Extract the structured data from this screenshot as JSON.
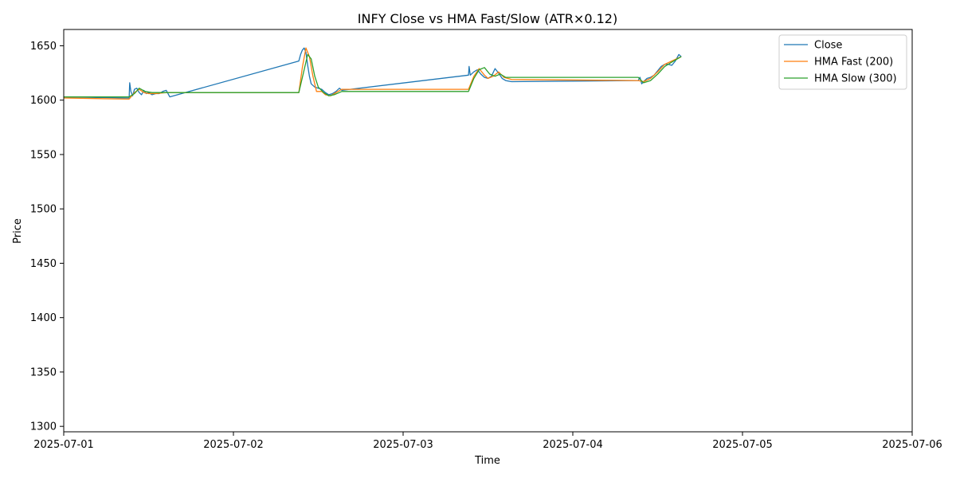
{
  "chart_data": {
    "type": "line",
    "title": "INFY  Close vs HMA Fast/Slow (ATR×0.12)",
    "xlabel": "Time",
    "ylabel": "Price",
    "xlim": [
      "2025-07-01T00:00",
      "2025-07-06T00:00"
    ],
    "ylim": [
      1295,
      1665
    ],
    "x_ticks": [
      "2025-07-01",
      "2025-07-02",
      "2025-07-03",
      "2025-07-04",
      "2025-07-05",
      "2025-07-06"
    ],
    "y_ticks": [
      1300,
      1350,
      1400,
      1450,
      1500,
      1550,
      1600,
      1650
    ],
    "grid": false,
    "legend_position": "top-right",
    "series": [
      {
        "name": "Close",
        "color": "#1f77b4",
        "points": [
          [
            "2025-07-01T00:00",
            1603
          ],
          [
            "2025-07-01T09:15",
            1602
          ],
          [
            "2025-07-01T09:20",
            1616
          ],
          [
            "2025-07-01T09:30",
            1608
          ],
          [
            "2025-07-01T09:45",
            1604
          ],
          [
            "2025-07-01T10:00",
            1610
          ],
          [
            "2025-07-01T10:20",
            1611
          ],
          [
            "2025-07-01T10:40",
            1607
          ],
          [
            "2025-07-01T11:00",
            1605
          ],
          [
            "2025-07-01T11:20",
            1609
          ],
          [
            "2025-07-01T11:40",
            1606
          ],
          [
            "2025-07-01T12:00",
            1607
          ],
          [
            "2025-07-01T12:30",
            1605
          ],
          [
            "2025-07-01T13:00",
            1606
          ],
          [
            "2025-07-01T13:30",
            1606
          ],
          [
            "2025-07-01T14:00",
            1608
          ],
          [
            "2025-07-01T14:30",
            1609
          ],
          [
            "2025-07-01T15:00",
            1603
          ],
          [
            "2025-07-02T09:15",
            1636
          ],
          [
            "2025-07-02T09:30",
            1642
          ],
          [
            "2025-07-02T09:45",
            1646
          ],
          [
            "2025-07-02T10:00",
            1648
          ],
          [
            "2025-07-02T10:15",
            1644
          ],
          [
            "2025-07-02T10:30",
            1632
          ],
          [
            "2025-07-02T10:45",
            1622
          ],
          [
            "2025-07-02T11:00",
            1615
          ],
          [
            "2025-07-02T11:30",
            1612
          ],
          [
            "2025-07-02T12:00",
            1611
          ],
          [
            "2025-07-02T12:30",
            1610
          ],
          [
            "2025-07-02T13:00",
            1607
          ],
          [
            "2025-07-02T13:30",
            1605
          ],
          [
            "2025-07-02T14:00",
            1606
          ],
          [
            "2025-07-02T14:30",
            1608
          ],
          [
            "2025-07-02T15:00",
            1611
          ],
          [
            "2025-07-02T15:20",
            1609
          ],
          [
            "2025-07-03T09:15",
            1623
          ],
          [
            "2025-07-03T09:20",
            1631
          ],
          [
            "2025-07-03T09:30",
            1623
          ],
          [
            "2025-07-03T10:00",
            1626
          ],
          [
            "2025-07-03T10:30",
            1628
          ],
          [
            "2025-07-03T11:00",
            1624
          ],
          [
            "2025-07-03T11:30",
            1621
          ],
          [
            "2025-07-03T12:00",
            1620
          ],
          [
            "2025-07-03T12:30",
            1622
          ],
          [
            "2025-07-03T13:00",
            1629
          ],
          [
            "2025-07-03T13:30",
            1625
          ],
          [
            "2025-07-03T14:00",
            1620
          ],
          [
            "2025-07-03T14:30",
            1618
          ],
          [
            "2025-07-03T15:20",
            1617
          ],
          [
            "2025-07-04T09:15",
            1618
          ],
          [
            "2025-07-04T09:30",
            1621
          ],
          [
            "2025-07-04T09:45",
            1615
          ],
          [
            "2025-07-04T10:00",
            1617
          ],
          [
            "2025-07-04T10:30",
            1620
          ],
          [
            "2025-07-04T11:00",
            1621
          ],
          [
            "2025-07-04T11:30",
            1623
          ],
          [
            "2025-07-04T12:00",
            1627
          ],
          [
            "2025-07-04T12:30",
            1631
          ],
          [
            "2025-07-04T13:00",
            1633
          ],
          [
            "2025-07-04T13:30",
            1633
          ],
          [
            "2025-07-04T14:00",
            1632
          ],
          [
            "2025-07-04T14:30",
            1636
          ],
          [
            "2025-07-04T15:00",
            1642
          ],
          [
            "2025-07-04T15:20",
            1640
          ]
        ]
      },
      {
        "name": "HMA Fast (200)",
        "color": "#ff7f0e",
        "points": [
          [
            "2025-07-01T00:00",
            1602
          ],
          [
            "2025-07-01T09:15",
            1601
          ],
          [
            "2025-07-01T10:00",
            1607
          ],
          [
            "2025-07-01T10:40",
            1610
          ],
          [
            "2025-07-01T11:20",
            1607
          ],
          [
            "2025-07-01T12:00",
            1606
          ],
          [
            "2025-07-01T13:00",
            1606
          ],
          [
            "2025-07-01T14:30",
            1607
          ],
          [
            "2025-07-01T15:20",
            1607
          ],
          [
            "2025-07-02T09:15",
            1607
          ],
          [
            "2025-07-02T09:45",
            1630
          ],
          [
            "2025-07-02T10:15",
            1648
          ],
          [
            "2025-07-02T10:45",
            1640
          ],
          [
            "2025-07-02T11:15",
            1622
          ],
          [
            "2025-07-02T11:45",
            1608
          ],
          [
            "2025-07-02T12:30",
            1608
          ],
          [
            "2025-07-02T13:00",
            1605
          ],
          [
            "2025-07-02T13:45",
            1604
          ],
          [
            "2025-07-02T14:30",
            1607
          ],
          [
            "2025-07-02T15:20",
            1610
          ],
          [
            "2025-07-03T09:15",
            1610
          ],
          [
            "2025-07-03T10:00",
            1622
          ],
          [
            "2025-07-03T10:45",
            1629
          ],
          [
            "2025-07-03T11:30",
            1623
          ],
          [
            "2025-07-03T12:00",
            1620
          ],
          [
            "2025-07-03T12:45",
            1622
          ],
          [
            "2025-07-03T13:30",
            1626
          ],
          [
            "2025-07-03T14:15",
            1621
          ],
          [
            "2025-07-03T15:20",
            1619
          ],
          [
            "2025-07-04T09:15",
            1618
          ],
          [
            "2025-07-04T10:00",
            1617
          ],
          [
            "2025-07-04T11:00",
            1620
          ],
          [
            "2025-07-04T12:00",
            1626
          ],
          [
            "2025-07-04T13:00",
            1633
          ],
          [
            "2025-07-04T14:00",
            1636
          ],
          [
            "2025-07-04T15:20",
            1640
          ]
        ]
      },
      {
        "name": "HMA Slow (300)",
        "color": "#2ca02c",
        "points": [
          [
            "2025-07-01T00:00",
            1603
          ],
          [
            "2025-07-01T09:15",
            1603
          ],
          [
            "2025-07-01T10:00",
            1606
          ],
          [
            "2025-07-01T10:40",
            1611
          ],
          [
            "2025-07-01T11:30",
            1608
          ],
          [
            "2025-07-01T12:30",
            1607
          ],
          [
            "2025-07-01T14:00",
            1607
          ],
          [
            "2025-07-01T15:20",
            1607
          ],
          [
            "2025-07-02T09:15",
            1607
          ],
          [
            "2025-07-02T10:00",
            1628
          ],
          [
            "2025-07-02T10:30",
            1642
          ],
          [
            "2025-07-02T11:00",
            1638
          ],
          [
            "2025-07-02T11:30",
            1622
          ],
          [
            "2025-07-02T12:00",
            1612
          ],
          [
            "2025-07-02T12:45",
            1607
          ],
          [
            "2025-07-02T13:30",
            1604
          ],
          [
            "2025-07-02T14:15",
            1605
          ],
          [
            "2025-07-02T15:20",
            1608
          ],
          [
            "2025-07-03T09:15",
            1608
          ],
          [
            "2025-07-03T10:00",
            1620
          ],
          [
            "2025-07-03T10:45",
            1628
          ],
          [
            "2025-07-03T11:30",
            1630
          ],
          [
            "2025-07-03T12:15",
            1624
          ],
          [
            "2025-07-03T13:00",
            1622
          ],
          [
            "2025-07-03T13:45",
            1624
          ],
          [
            "2025-07-03T14:30",
            1621
          ],
          [
            "2025-07-03T15:20",
            1621
          ],
          [
            "2025-07-04T09:15",
            1621
          ],
          [
            "2025-07-04T10:00",
            1616
          ],
          [
            "2025-07-04T11:00",
            1618
          ],
          [
            "2025-07-04T12:00",
            1624
          ],
          [
            "2025-07-04T13:00",
            1631
          ],
          [
            "2025-07-04T14:00",
            1635
          ],
          [
            "2025-07-04T15:20",
            1640
          ]
        ]
      }
    ]
  }
}
